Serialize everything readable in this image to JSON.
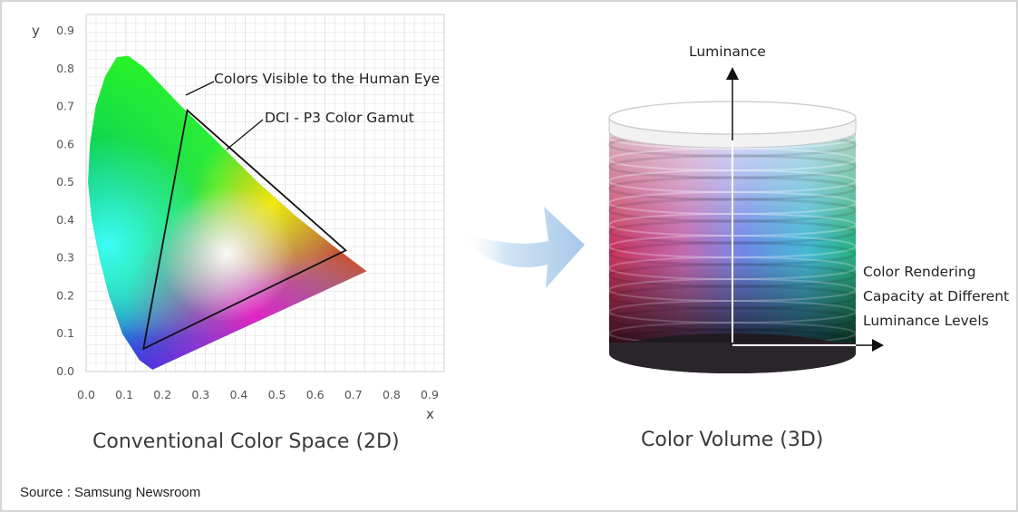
{
  "chart_data": {
    "type": "diagram",
    "xlabel": "x",
    "ylabel": "y",
    "xlim": [
      0.0,
      0.9
    ],
    "ylim": [
      0.0,
      0.9
    ],
    "x_ticks": [
      "0.0",
      "0.1",
      "0.2",
      "0.3",
      "0.4",
      "0.5",
      "0.6",
      "0.7",
      "0.8",
      "0.9"
    ],
    "y_ticks": [
      "0.0",
      "0.1",
      "0.2",
      "0.3",
      "0.4",
      "0.5",
      "0.6",
      "0.7",
      "0.8",
      "0.9"
    ],
    "grid": true,
    "series": [
      {
        "name": "Colors Visible to the Human Eye",
        "points": [
          [
            0.174,
            0.005
          ],
          [
            0.14,
            0.03
          ],
          [
            0.095,
            0.1
          ],
          [
            0.06,
            0.2
          ],
          [
            0.035,
            0.3
          ],
          [
            0.015,
            0.4
          ],
          [
            0.005,
            0.5
          ],
          [
            0.01,
            0.6
          ],
          [
            0.025,
            0.7
          ],
          [
            0.05,
            0.78
          ],
          [
            0.08,
            0.83
          ],
          [
            0.11,
            0.834
          ],
          [
            0.15,
            0.805
          ],
          [
            0.25,
            0.7
          ],
          [
            0.35,
            0.6
          ],
          [
            0.45,
            0.5
          ],
          [
            0.55,
            0.41
          ],
          [
            0.65,
            0.33
          ],
          [
            0.735,
            0.265
          ],
          [
            0.174,
            0.005
          ]
        ]
      },
      {
        "name": "DCI - P3 Color Gamut",
        "points": [
          [
            0.68,
            0.32
          ],
          [
            0.265,
            0.69
          ],
          [
            0.15,
            0.06
          ],
          [
            0.68,
            0.32
          ]
        ]
      }
    ]
  },
  "annotations": {
    "visible_colors": "Colors Visible to the Human Eye",
    "dci_p3": "DCI - P3 Color Gamut",
    "luminance": "Luminance",
    "rendering_line1": "Color Rendering",
    "rendering_line2": "Capacity at Different",
    "rendering_line3": "Luminance Levels"
  },
  "captions": {
    "left": "Conventional Color Space (2D)",
    "right": "Color Volume (3D)"
  },
  "source": "Source : Samsung Newsroom",
  "colors": {
    "arrow": "#b9d6f0",
    "axis_line": "#111111",
    "grid": "#e3e3e3"
  }
}
